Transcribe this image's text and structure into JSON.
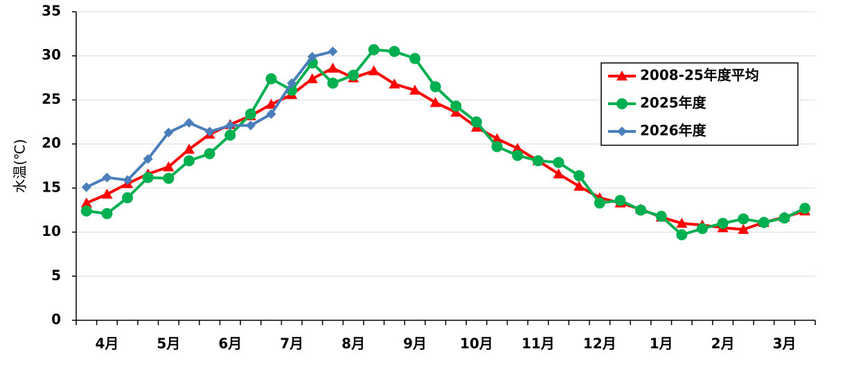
{
  "chart_data": {
    "type": "line",
    "y_label": "水温(℃)",
    "categories": [
      null,
      "4月",
      null,
      null,
      "5月",
      null,
      null,
      "6月",
      null,
      null,
      "7月",
      null,
      null,
      "8月",
      null,
      null,
      "9月",
      null,
      null,
      "10月",
      null,
      null,
      "11月",
      null,
      null,
      "12月",
      null,
      null,
      "1月",
      null,
      null,
      "2月",
      null,
      null,
      "3月",
      null
    ],
    "series": [
      {
        "name": "2008-25年度平均",
        "color": "#ff0000",
        "marker": "triangle",
        "values": [
          13.3,
          14.3,
          15.5,
          16.6,
          17.4,
          19.4,
          21.1,
          22.2,
          23.2,
          24.5,
          25.6,
          27.4,
          28.6,
          27.5,
          28.3,
          26.8,
          26.1,
          24.7,
          23.6,
          21.9,
          20.6,
          19.5,
          18.1,
          16.6,
          15.2,
          13.9,
          13.3,
          12.6,
          11.7,
          11.0,
          10.8,
          10.5,
          10.3,
          11.1,
          11.7,
          12.4
        ]
      },
      {
        "name": "2025年度",
        "color": "#00b050",
        "marker": "circle",
        "values": [
          12.4,
          12.1,
          13.9,
          16.2,
          16.1,
          18.1,
          18.9,
          21.0,
          23.4,
          27.4,
          26.1,
          29.2,
          26.9,
          27.8,
          30.7,
          30.5,
          29.7,
          26.5,
          24.3,
          22.5,
          19.7,
          18.7,
          18.1,
          17.9,
          16.4,
          13.3,
          13.6,
          12.5,
          11.8,
          9.7,
          10.4,
          11.0,
          11.5,
          11.1,
          11.6,
          12.7
        ]
      },
      {
        "name": "2026年度",
        "color": "#4a7ebb",
        "marker": "diamond",
        "values": [
          15.1,
          16.2,
          15.9,
          18.3,
          21.3,
          22.4,
          21.4,
          22.1,
          22.1,
          23.4,
          26.9,
          29.9,
          30.5,
          null,
          null,
          null,
          null,
          null,
          null,
          null,
          null,
          null,
          null,
          null,
          null,
          null,
          null,
          null,
          null,
          null,
          null,
          null,
          null,
          null,
          null,
          null
        ]
      }
    ],
    "ylim": [
      0,
      35
    ],
    "yticks": [
      0,
      5,
      10,
      15,
      20,
      25,
      30,
      35
    ],
    "grid": true,
    "legend": "upper right"
  }
}
